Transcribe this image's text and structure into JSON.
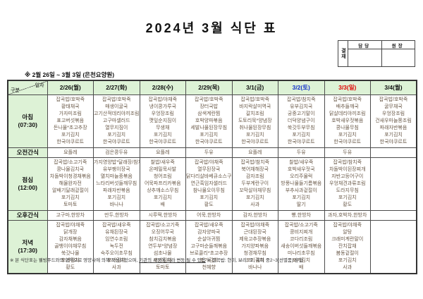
{
  "title": "2024년 3월 식단 표",
  "approval": {
    "label": "결재",
    "columns": [
      "담당",
      "원장"
    ]
  },
  "period_note": "※ 2월 26일 ~ 3월 3일 (은천요양원)",
  "colors": {
    "header_green": "#ddf2d6",
    "saturday": "#1533cc",
    "sunday": "#e00000",
    "menu_text": "#6a5948"
  },
  "table": {
    "corner": {
      "top": "일자",
      "bottom": "구분"
    },
    "days": [
      {
        "label": "2/26(월)",
        "color": "#111111"
      },
      {
        "label": "2/27(화)",
        "color": "#111111"
      },
      {
        "label": "2/28(수)",
        "color": "#111111"
      },
      {
        "label": "2/29(목)",
        "color": "#111111"
      },
      {
        "label": "3/1(금)",
        "color": "#111111"
      },
      {
        "label": "3/2(토)",
        "color": "#1533cc"
      },
      {
        "label": "3/3(일)",
        "color": "#e00000"
      },
      {
        "label": "3/4(월)",
        "color": "#111111"
      }
    ],
    "rows": [
      {
        "type": "meal",
        "name": "아침",
        "time": "(07:30)",
        "cells": [
          [
            "잡곡밥/호박죽",
            "황태채국",
            "가자미조림",
            "표고버섯볶음",
            "돈나물*초고추장",
            "포기김치",
            "한국야쿠르트"
          ],
          [
            "잡곡밥/호박죽",
            "매생이굴국",
            "고기산적데리야끼조림",
            "고구마샐러드",
            "열무지짐이",
            "포기김치",
            "한국야쿠르트"
          ],
          [
            "잡곡밥/야채죽",
            "냉이콩가루국",
            "우엉장조림",
            "깻잎순지짐이",
            "무생채",
            "포기김치",
            "한국야쿠르트"
          ],
          [
            "잡곡밥/호박죽",
            "장터국밥",
            "삼색계란찜",
            "호박양파볶음",
            "세발나물된장무침",
            "포기김치",
            "한국야쿠르트"
          ],
          [
            "잡곡밥/호박죽",
            "바지락살미역국",
            "갈치조림",
            "도토리묵*양념장",
            "취나물된장무침",
            "포기김치",
            "한국야쿠르트"
          ],
          [
            "잡곡밥/참치죽",
            "유부김치국",
            "궁중고기말이",
            "더덕양념구이",
            "쑥갓두부무침",
            "포기김치",
            "한국야쿠르트"
          ],
          [
            "잡곡밥/호박죽",
            "배추들깨국",
            "닭살데리야끼조림",
            "호박새우젓볶음",
            "콩나물무침",
            "포기김치",
            "한국야쿠르트"
          ],
          [
            "잡곡밥/호박죽",
            "굴무채국",
            "우엉장조림",
            "건새우마늘쫑조림",
            "파래자반볶음",
            "포기김치",
            "한국야쿠르트"
          ]
        ]
      },
      {
        "type": "snack",
        "name": "오전간식",
        "cells": [
          "요플레",
          "검은콩두유",
          "요플레",
          "두유",
          "요플레",
          "두유",
          "두유",
          ""
        ]
      },
      {
        "type": "meal",
        "name": "점심",
        "time": "(12:00)",
        "cells": [
          [
            "잡곡밥/소고기죽",
            "콩나물김치국",
            "차돌박이청경채볶음",
            "해물완자전",
            "알배기달래겉절이",
            "포기김치",
            "토마토"
          ],
          [
            "가지영양밥*달래장/참치죽",
            "유부팽이장국",
            "멸치마늘종볶음",
            "느타리버섯들깨무침",
            "파래자반볶음",
            "포기김치",
            "바나나"
          ],
          [
            "찰밥/새우죽",
            "온메밀묵사발",
            "청어조림",
            "어묵파프리카볶음",
            "상추깨소스무침",
            "포기김치",
            "배"
          ],
          [
            "잡곡밥/야채죽",
            "열무된장국",
            "닭다리살바베큐소스구이",
            "연근흑임자샐러드",
            "참나물오이무침",
            "포기김치",
            "황도"
          ],
          [
            "잡곡밥/참치죽",
            "북어채해장국",
            "감자조림",
            "두부계란구이",
            "꼬막살야채무침",
            "포기김치",
            "사과"
          ],
          [
            "찰밥/새우죽",
            "호박새우젓국",
            "오리주물럭",
            "방풍나물들기름볶음",
            "부추사과겉절이",
            "포기김치",
            "딸기"
          ],
          [
            "잡곡밥/참치죽",
            "차돌박이된장찌개",
            "자반고등어구이",
            "우엉채견과류조림",
            "도라지무침",
            "포기김치",
            "황도"
          ],
          []
        ]
      },
      {
        "type": "snack",
        "name": "오후간식",
        "cells": [
          "고구마,한방차",
          "만두,한방차",
          "시루떡,한방차",
          "어묵,한방차",
          "감자,한방차",
          "빵,한방차",
          "과자,호박차,한방차",
          ""
        ]
      },
      {
        "type": "meal",
        "name": "저녁",
        "time": "(17:30)",
        "cells": [
          [
            "잡곡밥/야채죽",
            "닭개장",
            "감자채볶음",
            "골뱅이야채무침",
            "쑥갓나물",
            "포기김치",
            "황도"
          ],
          [
            "잡곡밥/새우죽",
            "유채된장국",
            "임연수조림",
            "녹두전",
            "숙주오이초무침",
            "포기김치",
            "사과"
          ],
          [
            "잡곡밥/소고기죽",
            "오징어무국",
            "참치김치볶음",
            "연두부*양념장",
            "섬초나물",
            "포기김치",
            "토마토"
          ],
          [
            "잡곡밥/새우죽",
            "감자양파국",
            "순살아귀찜",
            "고구마순들깨볶음",
            "브로콜리*초고추장",
            "포기김치",
            "천혜향"
          ],
          [
            "잡곡밥/야채죽",
            "근대된장국",
            "제육고추장볶음",
            "가지양파볶음",
            "청경채무침",
            "포기김치",
            "바나나"
          ],
          [
            "잡곡밥/소고기죽",
            "콩비지찌개",
            "코다리조림",
            "새송이버섯들깨볶음",
            "미나리초무침",
            "포기김치",
            "배"
          ],
          [
            "잡곡밥/야채죽",
            "알탕",
            "크래미계란말이",
            "잔치잡채",
            "봄동겉절이",
            "포기김치",
            "사과"
          ],
          []
        ]
      }
    ]
  },
  "footnote": {
    "part1": "※ 본 식단표는 웰빙푸드와의 협약으로 영양사에 의해 작성되었으며, ",
    "underlined": "기관의 사정에 따라 변동 될 수 있음",
    "part2": "  ※ 잡곡밥: 현미, 보리, 조, 흑미 중2~3(선별품) 혼합"
  }
}
